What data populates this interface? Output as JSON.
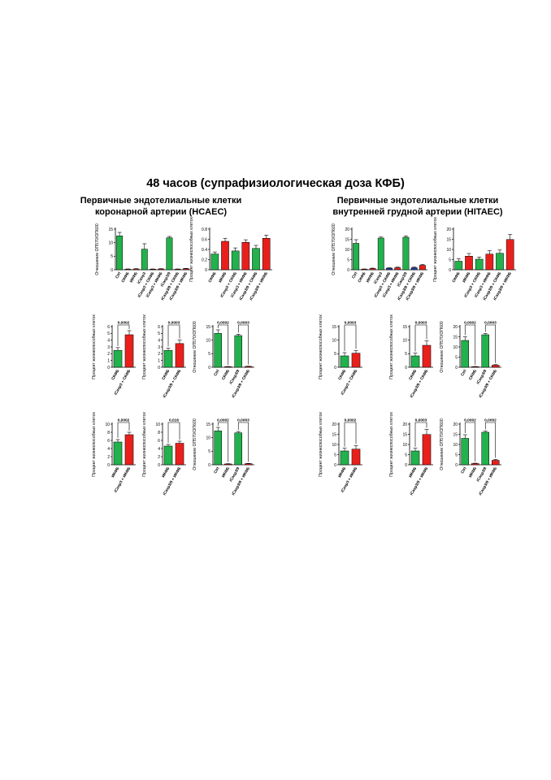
{
  "title": "48 часов (супрафизиологическая доза КФБ)",
  "groups": [
    {
      "line1": "Первичные эндотелиальные клетки",
      "line2": "коронарной артерии (HCAEC)"
    },
    {
      "line1": "Первичные эндотелиальные клетки",
      "line2": "внутренней грудной артерии (HITAEC)"
    }
  ],
  "colors": {
    "green": "#22b14c",
    "red": "#e8201c",
    "blue": "#1f3fa6",
    "axis": "#000000"
  },
  "chart_data": [
    {
      "id": "hcaec-od-all",
      "type": "bar",
      "ylabel": "Отношение ОП570/ОП600",
      "ylim": [
        0,
        15
      ],
      "yticks": [
        0,
        5,
        10,
        15
      ],
      "categories": [
        "Ctrl",
        "СКФБ",
        "ИКФБ",
        "iCasp3",
        "iCasp3 + СКФБ",
        "iCasp3 + ИКФБ",
        "iCasp3/9",
        "iCasp3/9 + СКФБ",
        "iCasp3/9 + ИКФБ"
      ],
      "values": [
        12.5,
        0.2,
        0.3,
        7.6,
        0.2,
        0.3,
        11.8,
        0.2,
        0.4
      ],
      "errors": [
        1.3,
        0.1,
        0.1,
        2.0,
        0.1,
        0.1,
        0.5,
        0.1,
        0.1
      ],
      "bar_colors": [
        "green",
        "red",
        "red",
        "green",
        "red",
        "red",
        "green",
        "red",
        "red"
      ],
      "comparisons": []
    },
    {
      "id": "hcaec-viable-all",
      "type": "bar",
      "ylabel": "Процент жизнеспособных клеток",
      "ylim": [
        0,
        0.8
      ],
      "yticks": [
        0,
        0.2,
        0.4,
        0.6,
        0.8
      ],
      "categories": [
        "СКФБ",
        "ИКФБ",
        "iCasp3 + СКФБ",
        "iCasp3 + ИКФБ",
        "iCasp3/9 + СКФБ",
        "iCasp3/9 + ИКФБ"
      ],
      "values": [
        0.31,
        0.56,
        0.37,
        0.54,
        0.42,
        0.62
      ],
      "errors": [
        0.04,
        0.06,
        0.06,
        0.05,
        0.06,
        0.06
      ],
      "bar_colors": [
        "green",
        "red",
        "green",
        "red",
        "green",
        "red"
      ],
      "comparisons": []
    },
    {
      "id": "hitaec-od-all",
      "type": "bar",
      "ylabel": "Отношение ОП570/ОП600",
      "ylim": [
        0,
        20
      ],
      "yticks": [
        0,
        5,
        10,
        15,
        20
      ],
      "categories": [
        "Ctrl",
        "СКФБ",
        "ИКФБ",
        "iCasp3",
        "iCasp3 + СКФБ",
        "iCasp3 + ИКФБ",
        "iCasp3/9",
        "iCasp3/9 + СКФБ",
        "iCasp3/9 + ИКФБ"
      ],
      "values": [
        13.0,
        0.3,
        0.6,
        15.6,
        0.8,
        1.0,
        16.0,
        1.0,
        2.2
      ],
      "errors": [
        1.8,
        0.1,
        0.2,
        0.5,
        0.2,
        0.3,
        0.6,
        0.3,
        0.4
      ],
      "bar_colors": [
        "green",
        "red",
        "red",
        "green",
        "blue",
        "red",
        "green",
        "blue",
        "red"
      ],
      "comparisons": []
    },
    {
      "id": "hitaec-viable-all",
      "type": "bar",
      "ylabel": "Процент жизнеспособных клеток",
      "ylim": [
        0,
        20
      ],
      "yticks": [
        0,
        5,
        10,
        15,
        20
      ],
      "categories": [
        "СКФБ",
        "ИКФБ",
        "iCasp3 + СКФБ",
        "iCasp3 + ИКФБ",
        "iCasp3/9 + СКФБ",
        "iCasp3/9 + ИКФБ"
      ],
      "values": [
        4.2,
        6.7,
        5.2,
        7.7,
        8.1,
        14.9
      ],
      "errors": [
        1.2,
        1.3,
        1.0,
        1.7,
        1.6,
        2.5
      ],
      "bar_colors": [
        "green",
        "red",
        "green",
        "red",
        "green",
        "red"
      ],
      "comparisons": []
    },
    {
      "id": "hcaec-viable-icasp3-skfb",
      "type": "bar",
      "ylabel": "Процент жизнеспособных клеток",
      "ylim": [
        0,
        6
      ],
      "yticks": [
        0,
        1,
        2,
        3,
        4,
        5,
        6
      ],
      "categories": [
        "СКФБ",
        "iCasp3 + СКФБ"
      ],
      "values": [
        2.5,
        4.8
      ],
      "errors": [
        0.4,
        0.6
      ],
      "bar_colors": [
        "green",
        "red"
      ],
      "comparisons": [
        {
          "a": 0,
          "b": 1,
          "label": "0,0002"
        }
      ]
    },
    {
      "id": "hcaec-viable-icasp9-skfb",
      "type": "bar",
      "ylabel": "Процент жизнеспособных клеток",
      "ylim": [
        0,
        6
      ],
      "yticks": [
        0,
        1,
        2,
        3,
        4,
        5,
        6
      ],
      "categories": [
        "СКФБ",
        "iCasp3/9 + СКФБ"
      ],
      "values": [
        2.5,
        3.5
      ],
      "errors": [
        0.3,
        0.5
      ],
      "bar_colors": [
        "green",
        "red"
      ],
      "comparisons": [
        {
          "a": 0,
          "b": 1,
          "label": "0,0003"
        }
      ]
    },
    {
      "id": "hcaec-od-skfb",
      "type": "bar",
      "ylabel": "Отношение ОП570/ОП600",
      "ylim": [
        0,
        15
      ],
      "yticks": [
        0,
        5,
        10,
        15
      ],
      "categories": [
        "Ctrl",
        "СКФБ",
        "iCasp3/9",
        "iCasp3/9 + СКФБ"
      ],
      "values": [
        12.5,
        0.2,
        11.7,
        0.3
      ],
      "errors": [
        1.3,
        0.1,
        0.5,
        0.1
      ],
      "bar_colors": [
        "green",
        "red",
        "green",
        "red"
      ],
      "comparisons": [
        {
          "a": 0,
          "b": 1,
          "label": "0,0002"
        },
        {
          "a": 2,
          "b": 3,
          "label": "0,0003"
        }
      ]
    },
    {
      "id": "hitaec-viable-icasp3-skfb",
      "type": "bar",
      "ylabel": "Процент жизнеспособных клеток",
      "ylim": [
        0,
        15
      ],
      "yticks": [
        0,
        5,
        10,
        15
      ],
      "categories": [
        "СКФБ",
        "iCasp3 + СКФБ"
      ],
      "values": [
        4.2,
        5.2
      ],
      "errors": [
        1.2,
        1.0
      ],
      "bar_colors": [
        "green",
        "red"
      ],
      "comparisons": [
        {
          "a": 0,
          "b": 1,
          "label": "0,0003"
        }
      ]
    },
    {
      "id": "hitaec-viable-icasp9-skfb",
      "type": "bar",
      "ylabel": "Процент жизнеспособных клеток",
      "ylim": [
        0,
        15
      ],
      "yticks": [
        0,
        5,
        10,
        15
      ],
      "categories": [
        "СКФБ",
        "iCasp3/9 + СКФБ"
      ],
      "values": [
        4.2,
        8.1
      ],
      "errors": [
        1.0,
        1.6
      ],
      "bar_colors": [
        "green",
        "red"
      ],
      "comparisons": [
        {
          "a": 0,
          "b": 1,
          "label": "0,0003"
        }
      ]
    },
    {
      "id": "hitaec-od-skfb",
      "type": "bar",
      "ylabel": "Отношение ОП570/ОП600",
      "ylim": [
        0,
        20
      ],
      "yticks": [
        0,
        5,
        10,
        15,
        20
      ],
      "categories": [
        "Ctrl",
        "СКФБ",
        "iCasp3/9",
        "iCasp3/9 + СКФБ"
      ],
      "values": [
        13.2,
        0.3,
        16.0,
        1.0
      ],
      "errors": [
        1.8,
        0.1,
        0.6,
        0.3
      ],
      "bar_colors": [
        "green",
        "red",
        "green",
        "red"
      ],
      "comparisons": [
        {
          "a": 0,
          "b": 1,
          "label": "0,0002"
        },
        {
          "a": 2,
          "b": 3,
          "label": "0,0003"
        }
      ]
    },
    {
      "id": "hcaec-viable-icasp3-ikfb",
      "type": "bar",
      "ylabel": "Процент жизнеспособных клеток",
      "ylim": [
        0,
        10
      ],
      "yticks": [
        0,
        2,
        4,
        6,
        8,
        10
      ],
      "categories": [
        "ИКФБ",
        "iCasp3 + ИКФБ"
      ],
      "values": [
        5.6,
        7.4
      ],
      "errors": [
        0.6,
        0.6
      ],
      "bar_colors": [
        "green",
        "red"
      ],
      "comparisons": [
        {
          "a": 0,
          "b": 1,
          "label": "0,0002"
        }
      ]
    },
    {
      "id": "hcaec-viable-icasp9-ikfb",
      "type": "bar",
      "ylabel": "Процент жизнеспособных клеток",
      "ylim": [
        0,
        10
      ],
      "yticks": [
        0,
        2,
        4,
        6,
        8,
        10
      ],
      "categories": [
        "ИКФБ",
        "iCasp3/9 + ИКФБ"
      ],
      "values": [
        4.6,
        5.3
      ],
      "errors": [
        0.4,
        0.5
      ],
      "bar_colors": [
        "green",
        "red"
      ],
      "comparisons": [
        {
          "a": 0,
          "b": 1,
          "label": "0,016"
        }
      ]
    },
    {
      "id": "hcaec-od-ikfb",
      "type": "bar",
      "ylabel": "Отношение ОП570/ОП600",
      "ylim": [
        0,
        15
      ],
      "yticks": [
        0,
        5,
        10,
        15
      ],
      "categories": [
        "Ctrl",
        "ИКФБ",
        "iCasp3/9",
        "iCasp3/9 + ИКФБ"
      ],
      "values": [
        12.5,
        0.3,
        11.8,
        0.4
      ],
      "errors": [
        1.3,
        0.1,
        0.5,
        0.1
      ],
      "bar_colors": [
        "green",
        "red",
        "green",
        "red"
      ],
      "comparisons": [
        {
          "a": 0,
          "b": 1,
          "label": "0,0002"
        },
        {
          "a": 2,
          "b": 3,
          "label": "0,0003"
        }
      ]
    },
    {
      "id": "hitaec-viable-icasp3-ikfb",
      "type": "bar",
      "ylabel": "Процент жизнеспособных клеток",
      "ylim": [
        0,
        20
      ],
      "yticks": [
        0,
        5,
        10,
        15,
        20
      ],
      "categories": [
        "ИКФБ",
        "iCasp3 + ИКФБ"
      ],
      "values": [
        6.8,
        7.7
      ],
      "errors": [
        1.3,
        1.7
      ],
      "bar_colors": [
        "green",
        "red"
      ],
      "comparisons": [
        {
          "a": 0,
          "b": 1,
          "label": "0,0002"
        }
      ]
    },
    {
      "id": "hitaec-viable-icasp9-ikfb",
      "type": "bar",
      "ylabel": "Процент жизнеспособных клеток",
      "ylim": [
        0,
        20
      ],
      "yticks": [
        0,
        5,
        10,
        15,
        20
      ],
      "categories": [
        "ИКФБ",
        "iCasp3/9 + ИКФБ"
      ],
      "values": [
        6.8,
        14.9
      ],
      "errors": [
        1.3,
        2.5
      ],
      "bar_colors": [
        "green",
        "red"
      ],
      "comparisons": [
        {
          "a": 0,
          "b": 1,
          "label": "0,0003"
        }
      ]
    },
    {
      "id": "hitaec-od-ikfb",
      "type": "bar",
      "ylabel": "Отношение ОП570/ОП600",
      "ylim": [
        0,
        20
      ],
      "yticks": [
        0,
        5,
        10,
        15,
        20
      ],
      "categories": [
        "Ctrl",
        "ИКФБ",
        "iCasp3/9",
        "iCasp3/9 + ИКФБ"
      ],
      "values": [
        13.0,
        0.6,
        16.0,
        2.2
      ],
      "errors": [
        1.8,
        0.2,
        0.6,
        0.4
      ],
      "bar_colors": [
        "green",
        "red",
        "green",
        "red"
      ],
      "comparisons": [
        {
          "a": 0,
          "b": 1,
          "label": "0,0002"
        },
        {
          "a": 2,
          "b": 3,
          "label": "0,0002"
        }
      ]
    }
  ]
}
